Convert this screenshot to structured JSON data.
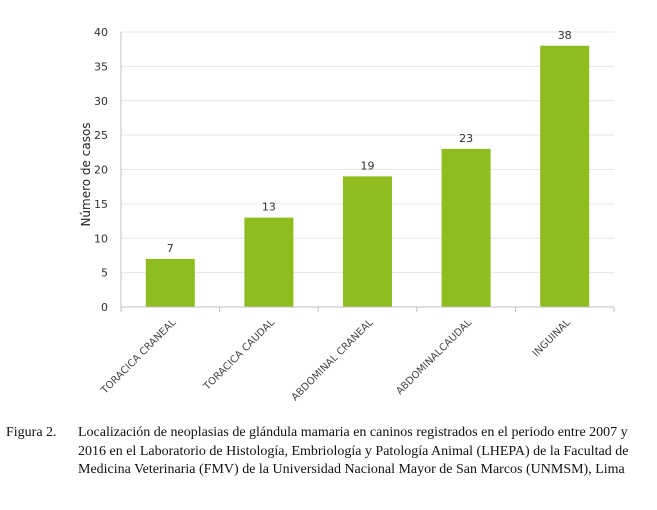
{
  "chart_data": {
    "type": "bar",
    "categories": [
      "TORACICA CRANEAL",
      "TORACICA CAUDAL",
      "ABDOMINAL CRANEAL",
      "ABDOMINALCAUDAL",
      "INGUINAL"
    ],
    "values": [
      7,
      13,
      19,
      23,
      38
    ],
    "data_labels": [
      "7",
      "13",
      "19",
      "23",
      "38"
    ],
    "ylabel": "Número de casos",
    "xlabel": "",
    "ylim": [
      0,
      40
    ],
    "yticks": [
      "0",
      "5",
      "10",
      "15",
      "20",
      "25",
      "30",
      "35",
      "40"
    ],
    "grid": true,
    "legend": "none",
    "bar_color": "#8fbc1e",
    "grid_color": "#e6e6e6",
    "axis_color": "#bfbfbf"
  },
  "caption": {
    "label": "Figura 2.",
    "text": "Localización de neoplasias de glándula mamaria en caninos registrados en el periodo entre 2007 y 2016 en el Laboratorio de Histología, Embriología y Patología Animal (LHEPA) de la Facultad de Medicina Veterinaria (FMV) de la Universidad Nacional Mayor de San Marcos (UNMSM), Lima"
  }
}
